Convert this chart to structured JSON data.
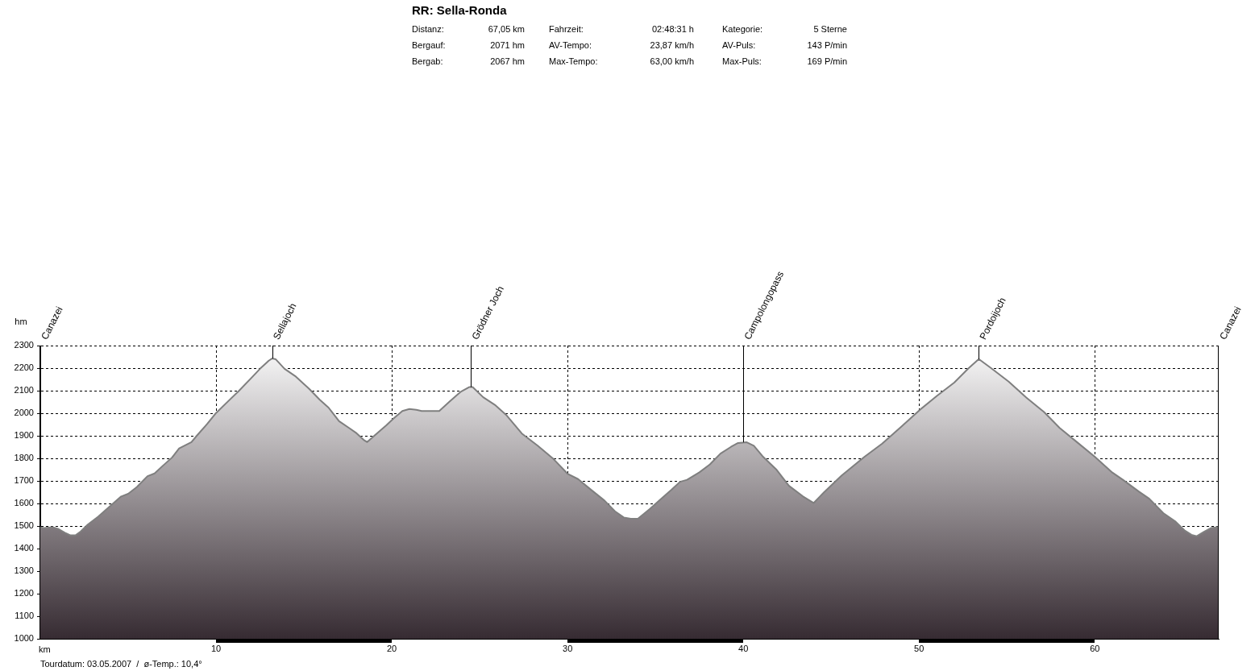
{
  "chart_data": {
    "type": "area",
    "title": "RR: Sella-Ronda",
    "xlabel": "km",
    "ylabel": "hm",
    "color": "#7f7f7f",
    "annotations": [
      "Distanz:",
      "67,05 km",
      "Fahrzeit:",
      "02:48:31 h",
      "Kategorie:",
      "5 Sterne",
      "Bergauf:",
      "2071 hm",
      "AV-Tempo:",
      "23,87 km/h",
      "AV-Puls:",
      "143 P/min",
      "Bergab:",
      "2067 hm",
      "Max-Tempo:",
      "63,00 km/h",
      "Max-Puls:",
      "169 P/min",
      "Tourdatum: 03.05.2007  /  ø-Temp.: 10,4°",
      {
        "text": "Sellajoch",
        "x": 13.2,
        "y": 2243
      },
      {
        "text": "Grödner Joch",
        "x": 24.5,
        "y": 2116
      },
      {
        "text": "Campolongopass",
        "x": 40,
        "y": 1871
      },
      {
        "text": "Pordoijoch",
        "x": 53.4,
        "y": 2240
      }
    ],
    "ref_lines": [
      {
        "axis": "x",
        "value": 0,
        "label": "Canazei"
      },
      {
        "axis": "x",
        "value": 67.05,
        "label": "Canazei"
      }
    ],
    "x": [
      0,
      0.2,
      0.7,
      1.0,
      1.4,
      1.7,
      2.0,
      2.3,
      2.7,
      3.3,
      4.0,
      4.6,
      5.0,
      5.5,
      6.1,
      6.5,
      6.9,
      7.5,
      7.9,
      8.6,
      8.9,
      9.5,
      10.0,
      10.7,
      11.3,
      12.0,
      12.5,
      13.0,
      13.2,
      13.4,
      13.9,
      14.5,
      15.3,
      15.9,
      16.4,
      17.0,
      17.6,
      18.0,
      18.4,
      18.6,
      19.0,
      19.7,
      20.1,
      20.6,
      21.0,
      21.4,
      21.7,
      22.7,
      23.3,
      23.9,
      24.4,
      24.6,
      25.2,
      25.9,
      26.5,
      27.4,
      28.3,
      29.2,
      30.0,
      30.6,
      31.3,
      32.1,
      32.7,
      33.2,
      33.6,
      34.0,
      34.7,
      35.3,
      35.9,
      36.4,
      36.8,
      37.5,
      38.1,
      38.7,
      39.3,
      39.7,
      40.2,
      40.6,
      41.1,
      41.9,
      42.6,
      43.4,
      44.0,
      44.6,
      45.6,
      46.9,
      47.9,
      49.0,
      50.0,
      51.0,
      52.0,
      52.8,
      53.4,
      54.1,
      55.1,
      56.1,
      57.1,
      58.0,
      59.0,
      60.0,
      61.0,
      61.6,
      62.5,
      63.1,
      63.9,
      64.6,
      65.1,
      65.5,
      65.8,
      66.2,
      66.6,
      67.05
    ],
    "values": [
      1494,
      1491,
      1495,
      1488,
      1470,
      1459,
      1459,
      1476,
      1506,
      1542,
      1590,
      1631,
      1643,
      1673,
      1721,
      1733,
      1762,
      1804,
      1844,
      1872,
      1900,
      1953,
      2001,
      2054,
      2099,
      2156,
      2197,
      2233,
      2243,
      2239,
      2197,
      2165,
      2108,
      2060,
      2025,
      1965,
      1933,
      1911,
      1882,
      1872,
      1900,
      1947,
      1977,
      2010,
      2019,
      2015,
      2010,
      2010,
      2053,
      2094,
      2116,
      2116,
      2071,
      2035,
      1993,
      1910,
      1856,
      1797,
      1732,
      1708,
      1663,
      1613,
      1565,
      1538,
      1532,
      1532,
      1577,
      1619,
      1660,
      1696,
      1705,
      1738,
      1773,
      1821,
      1851,
      1868,
      1871,
      1856,
      1809,
      1749,
      1678,
      1631,
      1602,
      1650,
      1724,
      1807,
      1865,
      1941,
      2012,
      2076,
      2136,
      2198,
      2240,
      2200,
      2140,
      2070,
      2006,
      1935,
      1871,
      1807,
      1737,
      1705,
      1653,
      1621,
      1557,
      1519,
      1481,
      1461,
      1455,
      1474,
      1491,
      1496
    ],
    "xlim": [
      0,
      67.05
    ],
    "xticks": [
      10,
      20,
      30,
      40,
      50,
      60
    ],
    "ylim": [
      1000,
      2300
    ],
    "yticks": [
      1000,
      1100,
      1200,
      1300,
      1400,
      1500,
      1600,
      1700,
      1800,
      1900,
      2000,
      2100,
      2200,
      2300
    ],
    "grid": true
  }
}
